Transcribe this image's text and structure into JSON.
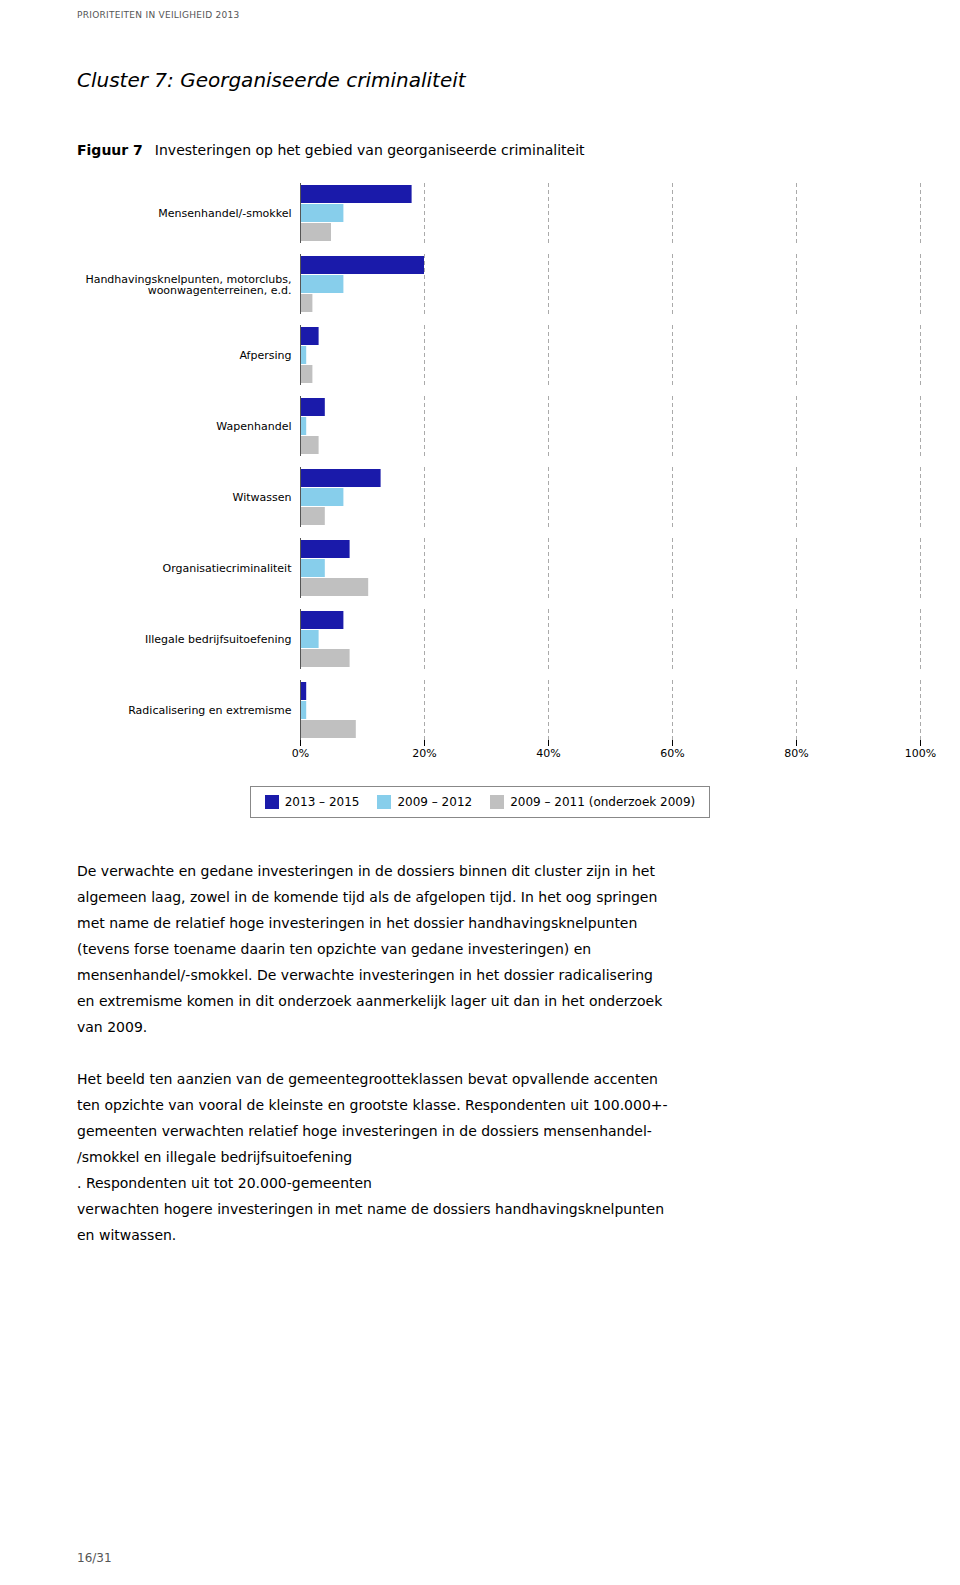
{
  "chart_data": {
    "type": "bar",
    "orientation": "horizontal",
    "title": "Investeringen op het gebied van georganiseerde criminaliteit",
    "categories": [
      "Mensenhandel/-smokkel",
      "Handhavingsknelpunten, motorclubs,\n     woonwagenterreinen, e.d.",
      "Afpersing",
      "Wapenhandel",
      "Witwassen",
      "Organisatiecriminaliteit",
      "Illegale bedrijfsuitoefening",
      "Radicalisering en extremisme"
    ],
    "series": [
      {
        "name": "2013 – 2015",
        "color": "#1a1aaa",
        "values": [
          18,
          20,
          3,
          4,
          13,
          8,
          7,
          1
        ]
      },
      {
        "name": "2009 – 2012",
        "color": "#87ceeb",
        "values": [
          7,
          7,
          1,
          1,
          7,
          4,
          3,
          1
        ]
      },
      {
        "name": "2009 – 2011 (onderzoek 2009)",
        "color": "#c0c0c0",
        "values": [
          5,
          2,
          2,
          3,
          4,
          11,
          8,
          9
        ]
      }
    ],
    "xlim": [
      0,
      100
    ],
    "xticks": [
      {
        "value": 0,
        "label": "0%"
      },
      {
        "value": 20,
        "label": "20%"
      },
      {
        "value": 40,
        "label": "40%"
      },
      {
        "value": 60,
        "label": "60%"
      },
      {
        "value": 80,
        "label": "80%"
      },
      {
        "value": 100,
        "label": "100%"
      }
    ],
    "grid": true,
    "legend": "bottom",
    "annotations": [
      "PRIORITEITEN IN VEILIGHEID 2013",
      "Cluster 7: Georganiseerde criminaliteit",
      "Figuur 7",
      [
        "De verwachte en gedane investeringen in de dossiers binnen dit cluster zijn in het",
        "algemeen laag, zowel in de komende tijd als de afgelopen tijd. In het oog springen",
        "met name de relatief hoge investeringen in het dossier handhavingsknelpunten",
        "(tevens forse toename daarin ten opzichte van gedane investeringen) en",
        "mensenhandel/-smokkel. De verwachte investeringen in het dossier radicalisering",
        "en extremisme komen in dit onderzoek aanmerkelijk lager uit dan in het onderzoek",
        "van 2009."
      ],
      [
        "Het beeld ten aanzien van de gemeentegrootteklassen bevat opvallende accenten",
        "ten opzichte van vooral de kleinste en grootste klasse. Respondenten uit 100.000+-",
        "gemeenten verwachten relatief hoge investeringen in de dossiers mensenhandel-",
        "/smokkel en illegale bedrijfsuitoefening",
        ". Respondenten uit tot 20.000-gemeenten",
        "verwachten hogere investeringen in met name de dossiers handhavingsknelpunten",
        "en witwassen."
      ],
      "16/31"
    ]
  }
}
